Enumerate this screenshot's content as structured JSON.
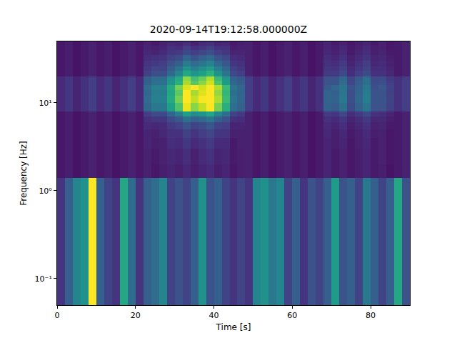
{
  "chart_data": {
    "type": "heatmap",
    "title": "2020-09-14T19:12:58.000000Z",
    "x_label": "Time [s]",
    "y_label": "Frequency [Hz]",
    "log": "y",
    "grid": false,
    "color": "Viridis",
    "xlim": [
      0,
      90
    ],
    "ylim": [
      0.05,
      50
    ],
    "xticks": [
      0,
      20,
      40,
      60,
      80
    ],
    "yticks": [
      {
        "value": 0.1,
        "label": "10⁻¹"
      },
      {
        "value": 1,
        "label": "10⁰"
      },
      {
        "value": 10,
        "label": "10¹"
      }
    ],
    "zlim": [
      0,
      1
    ],
    "time_edges": [
      0,
      2,
      4,
      6,
      8,
      10,
      12,
      14,
      16,
      18,
      20,
      22,
      24,
      26,
      28,
      30,
      32,
      34,
      36,
      38,
      40,
      42,
      44,
      46,
      48,
      50,
      52,
      54,
      56,
      58,
      60,
      62,
      64,
      66,
      68,
      70,
      72,
      74,
      76,
      78,
      80,
      82,
      84,
      86,
      88,
      90
    ],
    "frequency_edges": [
      0.05,
      1.4,
      2,
      3,
      4,
      5,
      6,
      7,
      8,
      10,
      12,
      14,
      16,
      18,
      20,
      23,
      26,
      30,
      35,
      40,
      45,
      50
    ],
    "cells": [
      [
        0.15,
        0.3,
        0.45,
        0.5,
        1.0,
        0.3,
        0.2,
        0.15,
        0.6,
        0.35,
        0.15,
        0.3,
        0.35,
        0.45,
        0.2,
        0.25,
        0.2,
        0.3,
        0.5,
        0.25,
        0.3,
        0.2,
        0.15,
        0.2,
        0.15,
        0.45,
        0.5,
        0.4,
        0.45,
        0.2,
        0.3,
        0.15,
        0.25,
        0.2,
        0.3,
        0.55,
        0.25,
        0.3,
        0.2,
        0.4,
        0.3,
        0.2,
        0.3,
        0.6,
        0.25
      ],
      [
        0.06,
        0.08,
        0.05,
        0.07,
        0.09,
        0.06,
        0.08,
        0.05,
        0.07,
        0.09,
        0.06,
        0.09,
        0.06,
        0.08,
        0.1,
        0.08,
        0.11,
        0.08,
        0.1,
        0.12,
        0.08,
        0.1,
        0.06,
        0.08,
        0.09,
        0.06,
        0.08,
        0.05,
        0.07,
        0.09,
        0.06,
        0.08,
        0.05,
        0.07,
        0.1,
        0.07,
        0.09,
        0.06,
        0.08,
        0.1,
        0.07,
        0.08,
        0.05,
        0.07,
        0.09
      ],
      [
        0.06,
        0.08,
        0.05,
        0.07,
        0.09,
        0.06,
        0.08,
        0.05,
        0.07,
        0.09,
        0.06,
        0.09,
        0.07,
        0.09,
        0.11,
        0.1,
        0.13,
        0.09,
        0.12,
        0.14,
        0.1,
        0.11,
        0.07,
        0.08,
        0.09,
        0.06,
        0.08,
        0.05,
        0.07,
        0.09,
        0.06,
        0.08,
        0.05,
        0.07,
        0.1,
        0.07,
        0.09,
        0.06,
        0.08,
        0.1,
        0.07,
        0.09,
        0.06,
        0.07,
        0.09
      ],
      [
        0.06,
        0.08,
        0.05,
        0.07,
        0.09,
        0.06,
        0.08,
        0.05,
        0.07,
        0.09,
        0.06,
        0.1,
        0.08,
        0.09,
        0.13,
        0.12,
        0.16,
        0.12,
        0.14,
        0.17,
        0.12,
        0.12,
        0.07,
        0.09,
        0.09,
        0.06,
        0.08,
        0.05,
        0.07,
        0.09,
        0.06,
        0.08,
        0.05,
        0.07,
        0.1,
        0.08,
        0.1,
        0.06,
        0.09,
        0.11,
        0.07,
        0.09,
        0.06,
        0.07,
        0.09
      ],
      [
        0.06,
        0.08,
        0.05,
        0.07,
        0.09,
        0.06,
        0.08,
        0.05,
        0.07,
        0.09,
        0.06,
        0.1,
        0.09,
        0.11,
        0.14,
        0.14,
        0.19,
        0.15,
        0.18,
        0.21,
        0.16,
        0.15,
        0.09,
        0.09,
        0.09,
        0.06,
        0.08,
        0.05,
        0.07,
        0.09,
        0.06,
        0.08,
        0.05,
        0.07,
        0.11,
        0.08,
        0.11,
        0.07,
        0.09,
        0.12,
        0.08,
        0.09,
        0.06,
        0.07,
        0.09
      ],
      [
        0.06,
        0.08,
        0.05,
        0.07,
        0.09,
        0.06,
        0.08,
        0.05,
        0.07,
        0.09,
        0.06,
        0.12,
        0.11,
        0.12,
        0.17,
        0.19,
        0.25,
        0.2,
        0.23,
        0.27,
        0.2,
        0.18,
        0.1,
        0.1,
        0.09,
        0.06,
        0.08,
        0.05,
        0.07,
        0.09,
        0.06,
        0.08,
        0.05,
        0.07,
        0.12,
        0.1,
        0.13,
        0.08,
        0.11,
        0.14,
        0.09,
        0.1,
        0.07,
        0.07,
        0.09
      ],
      [
        0.06,
        0.08,
        0.05,
        0.07,
        0.09,
        0.06,
        0.08,
        0.05,
        0.07,
        0.09,
        0.06,
        0.14,
        0.16,
        0.16,
        0.23,
        0.27,
        0.37,
        0.31,
        0.34,
        0.39,
        0.3,
        0.25,
        0.14,
        0.13,
        0.09,
        0.06,
        0.08,
        0.05,
        0.07,
        0.09,
        0.06,
        0.08,
        0.05,
        0.07,
        0.14,
        0.12,
        0.16,
        0.1,
        0.13,
        0.17,
        0.11,
        0.11,
        0.08,
        0.07,
        0.09
      ],
      [
        0.06,
        0.08,
        0.05,
        0.07,
        0.09,
        0.06,
        0.08,
        0.05,
        0.07,
        0.09,
        0.06,
        0.18,
        0.23,
        0.22,
        0.32,
        0.41,
        0.56,
        0.48,
        0.52,
        0.59,
        0.46,
        0.36,
        0.2,
        0.17,
        0.09,
        0.06,
        0.08,
        0.05,
        0.07,
        0.09,
        0.06,
        0.08,
        0.05,
        0.07,
        0.17,
        0.16,
        0.21,
        0.13,
        0.17,
        0.22,
        0.14,
        0.13,
        0.1,
        0.07,
        0.09
      ],
      [
        0.12,
        0.16,
        0.1,
        0.14,
        0.18,
        0.12,
        0.16,
        0.1,
        0.14,
        0.18,
        0.12,
        0.33,
        0.4,
        0.4,
        0.56,
        0.72,
        0.97,
        0.82,
        0.91,
        1.0,
        0.8,
        0.63,
        0.36,
        0.31,
        0.18,
        0.12,
        0.16,
        0.1,
        0.14,
        0.18,
        0.12,
        0.16,
        0.1,
        0.14,
        0.31,
        0.29,
        0.37,
        0.23,
        0.31,
        0.39,
        0.25,
        0.25,
        0.19,
        0.14,
        0.18
      ],
      [
        0.12,
        0.16,
        0.1,
        0.14,
        0.18,
        0.12,
        0.16,
        0.1,
        0.14,
        0.18,
        0.12,
        0.35,
        0.43,
        0.43,
        0.61,
        0.79,
        1.0,
        0.91,
        0.99,
        1.0,
        0.88,
        0.68,
        0.39,
        0.33,
        0.18,
        0.12,
        0.16,
        0.1,
        0.14,
        0.18,
        0.12,
        0.16,
        0.1,
        0.14,
        0.32,
        0.31,
        0.4,
        0.24,
        0.33,
        0.42,
        0.26,
        0.26,
        0.2,
        0.14,
        0.18
      ],
      [
        0.12,
        0.16,
        0.1,
        0.14,
        0.18,
        0.12,
        0.16,
        0.1,
        0.14,
        0.18,
        0.12,
        0.34,
        0.42,
        0.41,
        0.59,
        0.75,
        1.0,
        0.87,
        0.95,
        1.0,
        0.84,
        0.66,
        0.37,
        0.32,
        0.18,
        0.12,
        0.16,
        0.1,
        0.14,
        0.18,
        0.12,
        0.16,
        0.1,
        0.14,
        0.32,
        0.3,
        0.39,
        0.24,
        0.32,
        0.41,
        0.26,
        0.25,
        0.19,
        0.14,
        0.18
      ],
      [
        0.12,
        0.16,
        0.1,
        0.14,
        0.18,
        0.12,
        0.16,
        0.1,
        0.14,
        0.18,
        0.12,
        0.35,
        0.43,
        0.43,
        0.61,
        0.79,
        0.95,
        1.0,
        0.93,
        1.0,
        0.88,
        0.68,
        0.39,
        0.33,
        0.18,
        0.12,
        0.16,
        0.1,
        0.14,
        0.18,
        0.12,
        0.16,
        0.1,
        0.14,
        0.28,
        0.33,
        0.38,
        0.26,
        0.31,
        0.4,
        0.24,
        0.27,
        0.2,
        0.14,
        0.18
      ],
      [
        0.12,
        0.16,
        0.1,
        0.14,
        0.18,
        0.12,
        0.16,
        0.1,
        0.14,
        0.18,
        0.12,
        0.31,
        0.36,
        0.37,
        0.52,
        0.63,
        0.87,
        0.74,
        0.82,
        0.93,
        0.72,
        0.55,
        0.33,
        0.29,
        0.18,
        0.12,
        0.16,
        0.1,
        0.14,
        0.18,
        0.12,
        0.16,
        0.1,
        0.14,
        0.25,
        0.26,
        0.35,
        0.21,
        0.29,
        0.37,
        0.23,
        0.24,
        0.18,
        0.14,
        0.18
      ],
      [
        0.12,
        0.16,
        0.1,
        0.14,
        0.18,
        0.12,
        0.16,
        0.1,
        0.14,
        0.18,
        0.12,
        0.3,
        0.35,
        0.35,
        0.5,
        0.61,
        0.83,
        0.7,
        0.77,
        0.88,
        0.68,
        0.53,
        0.31,
        0.28,
        0.18,
        0.12,
        0.16,
        0.1,
        0.14,
        0.18,
        0.12,
        0.16,
        0.1,
        0.14,
        0.25,
        0.26,
        0.33,
        0.21,
        0.28,
        0.36,
        0.22,
        0.23,
        0.17,
        0.14,
        0.18
      ],
      [
        0.06,
        0.08,
        0.05,
        0.07,
        0.09,
        0.06,
        0.08,
        0.05,
        0.07,
        0.09,
        0.06,
        0.19,
        0.24,
        0.24,
        0.34,
        0.45,
        0.6,
        0.52,
        0.57,
        0.64,
        0.5,
        0.38,
        0.22,
        0.18,
        0.09,
        0.06,
        0.08,
        0.05,
        0.07,
        0.09,
        0.06,
        0.08,
        0.05,
        0.07,
        0.17,
        0.17,
        0.22,
        0.13,
        0.18,
        0.23,
        0.14,
        0.14,
        0.11,
        0.07,
        0.09
      ],
      [
        0.06,
        0.08,
        0.05,
        0.07,
        0.09,
        0.06,
        0.08,
        0.05,
        0.07,
        0.09,
        0.06,
        0.17,
        0.21,
        0.2,
        0.29,
        0.38,
        0.51,
        0.43,
        0.48,
        0.54,
        0.42,
        0.33,
        0.19,
        0.16,
        0.09,
        0.06,
        0.08,
        0.05,
        0.07,
        0.09,
        0.06,
        0.08,
        0.05,
        0.07,
        0.16,
        0.15,
        0.19,
        0.12,
        0.16,
        0.2,
        0.13,
        0.13,
        0.1,
        0.07,
        0.09
      ],
      [
        0.06,
        0.08,
        0.05,
        0.07,
        0.09,
        0.06,
        0.08,
        0.05,
        0.07,
        0.09,
        0.06,
        0.15,
        0.17,
        0.18,
        0.25,
        0.3,
        0.41,
        0.35,
        0.39,
        0.44,
        0.34,
        0.27,
        0.16,
        0.14,
        0.09,
        0.06,
        0.08,
        0.05,
        0.07,
        0.09,
        0.06,
        0.08,
        0.05,
        0.07,
        0.14,
        0.13,
        0.17,
        0.1,
        0.14,
        0.18,
        0.11,
        0.12,
        0.09,
        0.07,
        0.09
      ],
      [
        0.06,
        0.08,
        0.05,
        0.07,
        0.09,
        0.06,
        0.08,
        0.05,
        0.07,
        0.09,
        0.06,
        0.13,
        0.14,
        0.15,
        0.2,
        0.23,
        0.32,
        0.26,
        0.3,
        0.34,
        0.26,
        0.22,
        0.13,
        0.12,
        0.09,
        0.06,
        0.08,
        0.05,
        0.07,
        0.09,
        0.06,
        0.08,
        0.05,
        0.07,
        0.13,
        0.11,
        0.14,
        0.09,
        0.12,
        0.15,
        0.1,
        0.11,
        0.08,
        0.07,
        0.09
      ],
      [
        0.06,
        0.08,
        0.05,
        0.07,
        0.09,
        0.06,
        0.08,
        0.05,
        0.07,
        0.09,
        0.06,
        0.11,
        0.1,
        0.12,
        0.16,
        0.17,
        0.22,
        0.18,
        0.21,
        0.24,
        0.18,
        0.16,
        0.1,
        0.1,
        0.09,
        0.06,
        0.08,
        0.05,
        0.07,
        0.09,
        0.06,
        0.08,
        0.05,
        0.07,
        0.11,
        0.09,
        0.12,
        0.07,
        0.1,
        0.13,
        0.08,
        0.1,
        0.07,
        0.07,
        0.09
      ],
      [
        0.06,
        0.08,
        0.05,
        0.07,
        0.09,
        0.06,
        0.08,
        0.05,
        0.07,
        0.09,
        0.06,
        0.1,
        0.09,
        0.1,
        0.14,
        0.13,
        0.18,
        0.14,
        0.16,
        0.19,
        0.14,
        0.14,
        0.08,
        0.09,
        0.09,
        0.06,
        0.08,
        0.05,
        0.07,
        0.09,
        0.06,
        0.08,
        0.05,
        0.07,
        0.1,
        0.08,
        0.11,
        0.07,
        0.09,
        0.12,
        0.08,
        0.09,
        0.06,
        0.07,
        0.09
      ],
      [
        0.06,
        0.08,
        0.05,
        0.07,
        0.09,
        0.06,
        0.08,
        0.05,
        0.07,
        0.09,
        0.06,
        0.09,
        0.07,
        0.09,
        0.11,
        0.1,
        0.13,
        0.09,
        0.12,
        0.14,
        0.1,
        0.11,
        0.07,
        0.08,
        0.09,
        0.06,
        0.08,
        0.05,
        0.07,
        0.09,
        0.06,
        0.08,
        0.05,
        0.07,
        0.1,
        0.07,
        0.09,
        0.06,
        0.08,
        0.1,
        0.07,
        0.09,
        0.06,
        0.07,
        0.09
      ]
    ]
  }
}
